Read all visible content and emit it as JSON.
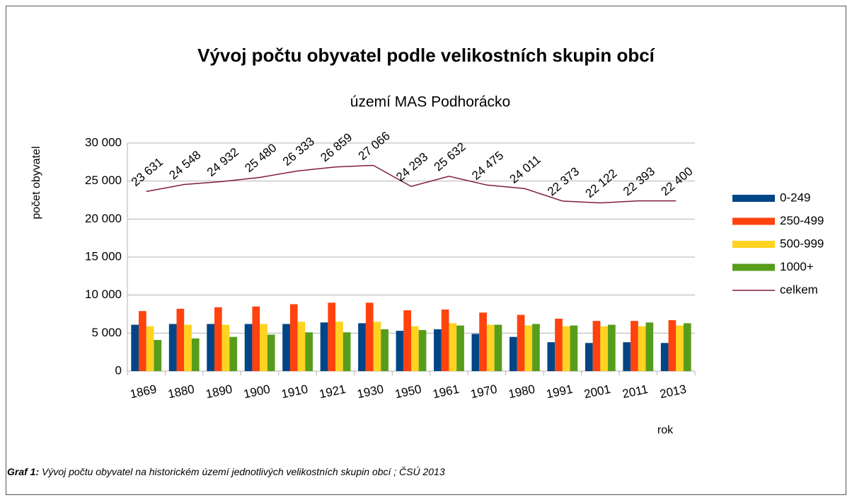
{
  "chart_data": {
    "type": "bar",
    "title": "Vývoj počtu obyvatel podle velikostních skupin obcí",
    "subtitle": "území MAS Podhorácko",
    "y_label": "počet obyvatel",
    "x_label": "rok",
    "categories": [
      "1869",
      "1880",
      "1890",
      "1900",
      "1910",
      "1921",
      "1930",
      "1950",
      "1961",
      "1970",
      "1980",
      "1991",
      "2001",
      "2011",
      "2013"
    ],
    "series": [
      {
        "name": "0-249",
        "color": "#004586",
        "values": [
          6100,
          6200,
          6200,
          6200,
          6200,
          6400,
          6300,
          5300,
          5500,
          4900,
          4500,
          3800,
          3700,
          3800,
          3700
        ]
      },
      {
        "name": "250-499",
        "color": "#ff420e",
        "values": [
          7900,
          8200,
          8400,
          8500,
          8800,
          9000,
          9000,
          8000,
          8100,
          7700,
          7400,
          6900,
          6600,
          6600,
          6700
        ]
      },
      {
        "name": "500-999",
        "color": "#ffd320",
        "values": [
          5900,
          6100,
          6100,
          6200,
          6500,
          6500,
          6500,
          5900,
          6300,
          6100,
          6000,
          5900,
          5900,
          5900,
          6000
        ]
      },
      {
        "name": "1000+",
        "color": "#579d1c",
        "values": [
          4100,
          4300,
          4500,
          4800,
          5100,
          5100,
          5500,
          5400,
          6000,
          6100,
          6200,
          6000,
          6100,
          6400,
          6300
        ]
      },
      {
        "name": "celkem",
        "color": "#7e1e3c",
        "type": "line",
        "values": [
          23631,
          24548,
          24932,
          25480,
          26333,
          26859,
          27066,
          24293,
          25632,
          24475,
          24011,
          22373,
          22122,
          22393,
          22400
        ],
        "value_labels": [
          "23 631",
          "24 548",
          "24 932",
          "25 480",
          "26 333",
          "26 859",
          "27 066",
          "24 293",
          "25 632",
          "24 475",
          "24 011",
          "22 373",
          "22 122",
          "22 393",
          "22 400"
        ]
      }
    ],
    "ylim": [
      0,
      30000
    ],
    "yticks": [
      0,
      {
        "value": 5000,
        "label": "5 000"
      },
      {
        "value": 10000,
        "label": "10 000"
      },
      {
        "value": 15000,
        "label": "15 000"
      },
      {
        "value": 20000,
        "label": "20 000"
      },
      {
        "value": 25000,
        "label": "25 000"
      },
      {
        "value": 30000,
        "label": "30 000"
      }
    ],
    "grid": true,
    "legend": "right"
  },
  "caption": {
    "label": "Graf 1:",
    "text": " Vývoj počtu obyvatel na historickém území jednotlivých velikostních skupin obcí ; ČSÚ 2013"
  }
}
